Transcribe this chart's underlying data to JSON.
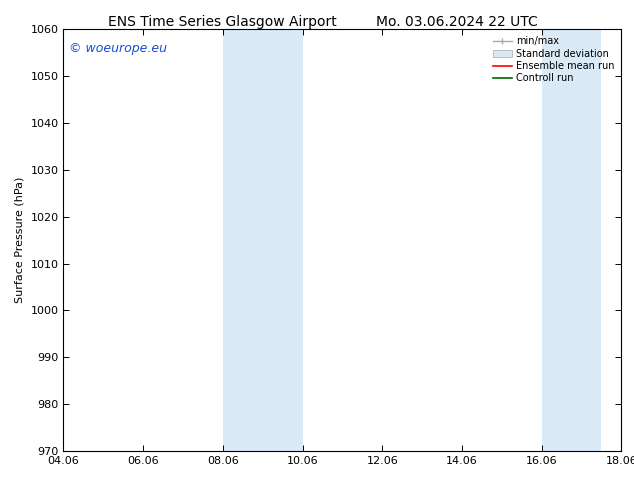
{
  "title_left": "ENS Time Series Glasgow Airport",
  "title_right": "Mo. 03.06.2024 22 UTC",
  "ylabel": "Surface Pressure (hPa)",
  "ylim": [
    970,
    1060
  ],
  "yticks": [
    970,
    980,
    990,
    1000,
    1010,
    1020,
    1030,
    1040,
    1050,
    1060
  ],
  "xlim": [
    0,
    14
  ],
  "xtick_labels": [
    "04.06",
    "06.06",
    "08.06",
    "10.06",
    "12.06",
    "14.06",
    "16.06",
    "18.06"
  ],
  "xtick_positions": [
    0,
    2,
    4,
    6,
    8,
    10,
    12,
    14
  ],
  "shaded_bands": [
    {
      "x_start": 4.0,
      "x_end": 4.67
    },
    {
      "x_start": 4.67,
      "x_end": 6.0
    },
    {
      "x_start": 12.0,
      "x_end": 12.5
    },
    {
      "x_start": 12.5,
      "x_end": 13.5
    }
  ],
  "shaded_color": "#daeaf7",
  "watermark_text": "© woeurope.eu",
  "watermark_color": "#1a4fd6",
  "watermark_fontsize": 9,
  "background_color": "#ffffff",
  "legend_entries": [
    {
      "label": "min/max"
    },
    {
      "label": "Standard deviation"
    },
    {
      "label": "Ensemble mean run"
    },
    {
      "label": "Controll run"
    }
  ],
  "legend_colors": [
    "#aaaaaa",
    "#ccddee",
    "#ff0000",
    "#008000"
  ],
  "title_fontsize": 10,
  "axis_label_fontsize": 8,
  "tick_fontsize": 8
}
